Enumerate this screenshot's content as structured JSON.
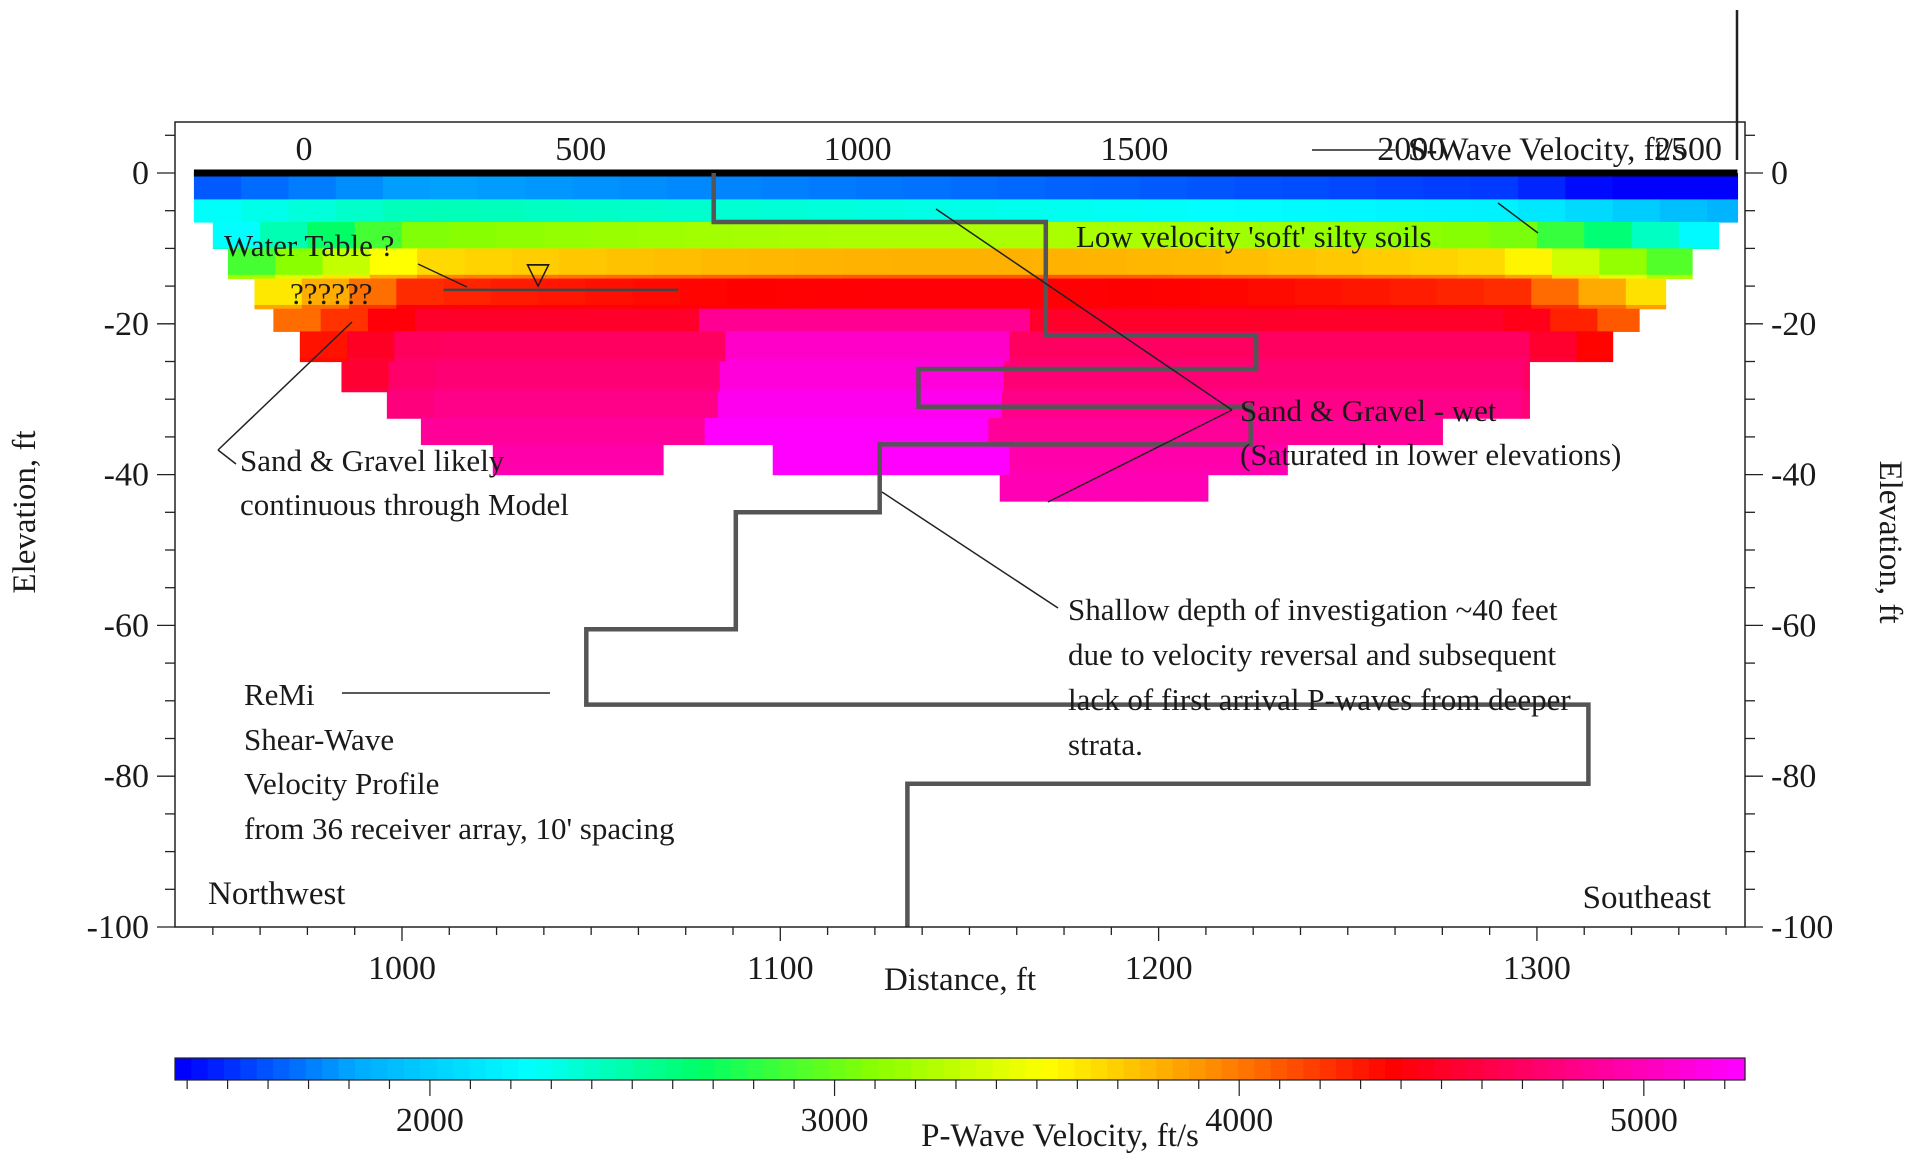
{
  "chart_data": {
    "type": "heatmap",
    "title": "",
    "xlabel": "Distance, ft",
    "ylabel_left": "Elevation, ft",
    "ylabel_right": "Elevation, ft",
    "x_ticks": [
      "1000",
      "1100",
      "1200",
      "1300"
    ],
    "y_ticks": [
      "0",
      "-20",
      "-40",
      "-60",
      "-80",
      "-100"
    ],
    "xlim": [
      940,
      1355
    ],
    "ylim": [
      -100,
      5
    ],
    "swave_axis": {
      "label": "S-Wave Velocity, ft/s",
      "ticks": [
        "0",
        "500",
        "1000",
        "1500",
        "2000",
        "2500"
      ],
      "range": [
        -350,
        3450
      ]
    },
    "colorbar": {
      "label": "P-Wave Velocity, ft/s",
      "ticks": [
        "2000",
        "3000",
        "4000",
        "5000"
      ],
      "range": [
        1370,
        5250
      ],
      "colors": [
        "#0000ff",
        "#00aaff",
        "#00ffff",
        "#00ff66",
        "#88ff00",
        "#ffff00",
        "#ff8800",
        "#ff0000",
        "#ff0080",
        "#ff00ff"
      ]
    },
    "section_labels": {
      "left": "Northwest",
      "right": "Southeast"
    },
    "model_rows": [
      {
        "top": 0,
        "bottom": -6.5,
        "x0": 945,
        "x1": 1353
      },
      {
        "top": -6.5,
        "bottom": -10,
        "x0": 950,
        "x1": 1348
      },
      {
        "top": -10,
        "bottom": -14,
        "x0": 954,
        "x1": 1341
      },
      {
        "top": -14,
        "bottom": -18,
        "x0": 961,
        "x1": 1334
      },
      {
        "top": -18,
        "bottom": -21,
        "x0": 966,
        "x1": 1327
      },
      {
        "top": -21,
        "bottom": -25,
        "x0": 973,
        "x1": 1320
      },
      {
        "top": -25,
        "bottom": -29,
        "x0": 984,
        "x1": 1298
      },
      {
        "top": -29,
        "bottom": -32.5,
        "x0": 996,
        "x1": 1298
      },
      {
        "top": -32.5,
        "bottom": -36,
        "x0": 1005,
        "x1": 1275
      },
      {
        "top": -36,
        "bottom": -40,
        "x0": 1024,
        "x1": 1069,
        "gap": [
          1069,
          1098
        ]
      },
      {
        "top": -36,
        "bottom": -40,
        "x0": 1098,
        "x1": 1234
      },
      {
        "top": -40,
        "bottom": -43.5,
        "x0": 1158,
        "x1": 1213
      }
    ],
    "velocity_field": {
      "note_depths": [
        0,
        -6,
        -12,
        -16,
        -22,
        -40
      ],
      "p_velocity": [
        1500,
        2700,
        3700,
        4300,
        4700,
        5000
      ]
    },
    "remi_profile": {
      "depth_ft": [
        0,
        -6.5,
        -6.5,
        -21.5,
        -21.5,
        -26,
        -26,
        -31,
        -31,
        -36,
        -36,
        -45,
        -45,
        -60.5,
        -60.5,
        -70.5,
        -70.5,
        -81,
        -81,
        -100
      ],
      "vs_ftps": [
        740,
        740,
        1340,
        1340,
        1720,
        1720,
        1110,
        1110,
        1710,
        1710,
        1040,
        1040,
        780,
        780,
        510,
        510,
        2320,
        2320,
        1090,
        1090
      ]
    },
    "water_table": {
      "elevation": -15.5,
      "x_start": 1011,
      "x_end": 1073,
      "symbol": "▽"
    },
    "annotations": {
      "water_table": "Water Table ?",
      "question_marks": "??????",
      "soft_soils": "Low velocity 'soft' silty soils",
      "sand_wet_1": "Sand & Gravel - wet",
      "sand_wet_2": "(Saturated in lower elevations)",
      "sand_likely_1": "Sand & Gravel likely",
      "sand_likely_2": "continuous through Model",
      "shallow_1": "Shallow depth of investigation ~40 feet",
      "shallow_2": "due to velocity reversal and subsequent",
      "shallow_3": "lack of first arrival P-waves from deeper",
      "shallow_4": "strata.",
      "remi_1": "ReMi",
      "remi_2": "Shear-Wave",
      "remi_3": "Velocity Profile",
      "remi_4": "from 36 receiver array, 10' spacing"
    }
  }
}
